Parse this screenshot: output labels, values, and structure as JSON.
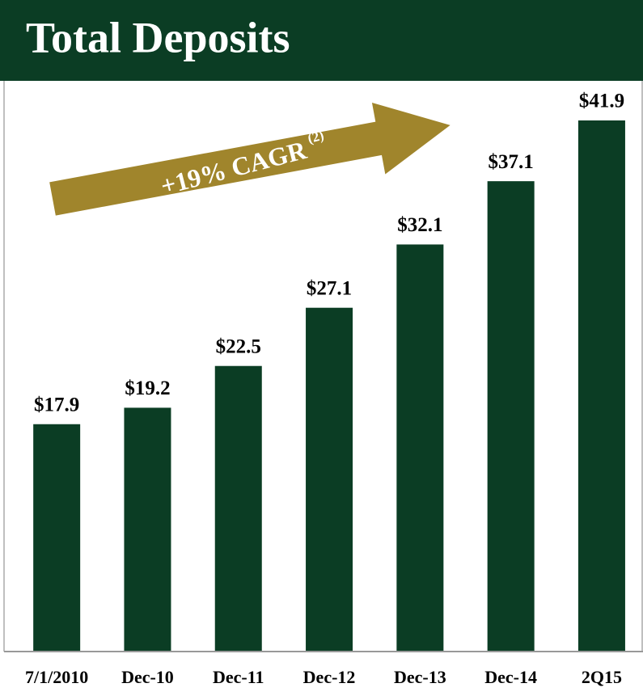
{
  "chart_data": {
    "type": "bar",
    "title": "Total Deposits",
    "categories": [
      "7/1/2010",
      "Dec-10",
      "Dec-11",
      "Dec-12",
      "Dec-13",
      "Dec-14",
      "2Q15"
    ],
    "values": [
      17.9,
      19.2,
      22.5,
      27.1,
      32.1,
      37.1,
      41.9
    ],
    "value_labels": [
      "$17.9",
      "$19.2",
      "$22.5",
      "$27.1",
      "$32.1",
      "$37.1",
      "$41.9"
    ],
    "color": "#0b3d24",
    "annotation": {
      "text": "+19% CAGR",
      "note": "(2)"
    }
  }
}
